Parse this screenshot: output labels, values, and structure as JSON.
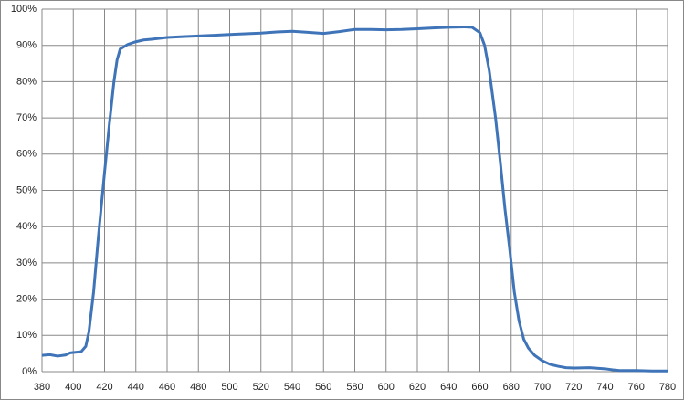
{
  "chart_data": {
    "type": "line",
    "x": [
      380,
      385,
      390,
      395,
      398,
      400,
      405,
      408,
      410,
      413,
      416,
      420,
      423,
      426,
      428,
      430,
      435,
      440,
      445,
      450,
      460,
      470,
      480,
      490,
      500,
      510,
      520,
      530,
      540,
      550,
      560,
      570,
      580,
      590,
      600,
      610,
      620,
      630,
      640,
      650,
      655,
      660,
      663,
      666,
      670,
      673,
      676,
      679,
      682,
      685,
      688,
      691,
      695,
      700,
      705,
      710,
      715,
      720,
      730,
      740,
      745,
      750,
      760,
      770,
      780
    ],
    "values": [
      4.5,
      4.7,
      4.3,
      4.6,
      5.2,
      5.3,
      5.5,
      7,
      11,
      22,
      37,
      55,
      68,
      80,
      86,
      89,
      90.3,
      91,
      91.5,
      91.7,
      92.2,
      92.4,
      92.6,
      92.8,
      93,
      93.2,
      93.4,
      93.7,
      93.9,
      93.6,
      93.3,
      93.8,
      94.4,
      94.4,
      94.3,
      94.4,
      94.6,
      94.8,
      95,
      95.1,
      95,
      93.5,
      90,
      83,
      70,
      58,
      45,
      34,
      22,
      14,
      9,
      6.5,
      4.5,
      3,
      2,
      1.5,
      1.1,
      1,
      1.1,
      0.8,
      0.5,
      0.3,
      0.3,
      0.2,
      0.2
    ],
    "color": "#3f74b8",
    "xlim": [
      380,
      780
    ],
    "xticks": [
      380,
      400,
      420,
      440,
      460,
      480,
      500,
      520,
      540,
      560,
      580,
      600,
      620,
      640,
      660,
      680,
      700,
      720,
      740,
      760,
      780
    ],
    "ylim": [
      0,
      100
    ],
    "yticks": [
      {
        "value": 0,
        "label": "0%"
      },
      {
        "value": 10,
        "label": "10%"
      },
      {
        "value": 20,
        "label": "20%"
      },
      {
        "value": 30,
        "label": "30%"
      },
      {
        "value": 40,
        "label": "40%"
      },
      {
        "value": 50,
        "label": "50%"
      },
      {
        "value": 60,
        "label": "60%"
      },
      {
        "value": 70,
        "label": "70%"
      },
      {
        "value": 80,
        "label": "80%"
      },
      {
        "value": 90,
        "label": "90%"
      },
      {
        "value": 100,
        "label": "100%"
      }
    ],
    "grid": true
  }
}
